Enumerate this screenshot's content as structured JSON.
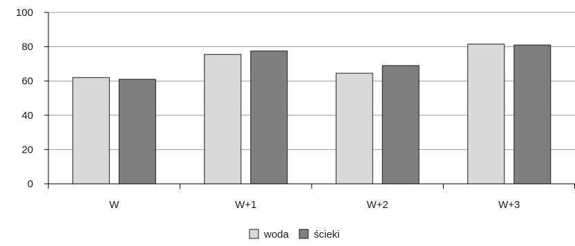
{
  "chart_data": {
    "type": "bar",
    "title": "",
    "xlabel": "",
    "ylabel": "",
    "categories": [
      "W",
      "W+1",
      "W+2",
      "W+3"
    ],
    "ylim": [
      0,
      100
    ],
    "yticks": [
      0,
      20,
      40,
      60,
      80,
      100
    ],
    "grid": true,
    "legend_position": "bottom",
    "series": [
      {
        "name": "woda",
        "color": "#d9d9d9",
        "values": [
          62,
          75.5,
          64.5,
          81.5
        ]
      },
      {
        "name": "ścieki",
        "color": "#7f7f7f",
        "values": [
          61,
          77.5,
          69,
          81
        ]
      }
    ]
  }
}
